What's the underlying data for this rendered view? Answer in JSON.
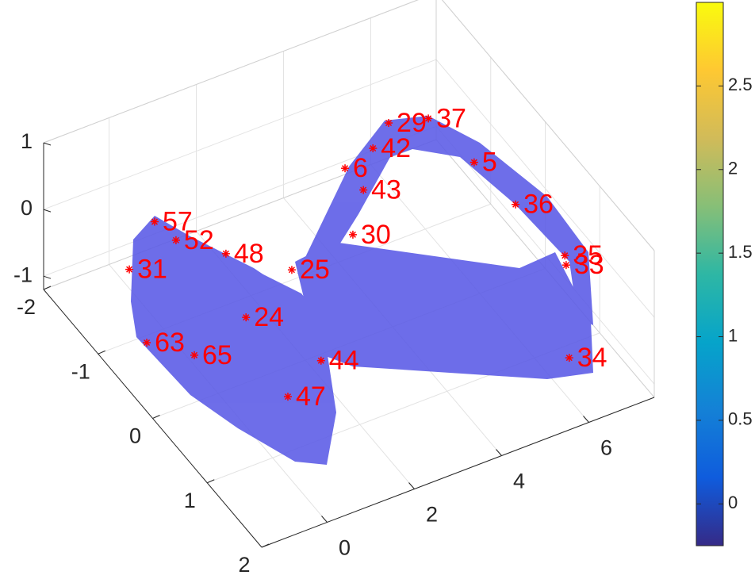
{
  "chart_data": {
    "type": "scatter3d",
    "xlim": [
      -1.5,
      7.5
    ],
    "xticks": [
      0,
      2,
      4,
      6
    ],
    "ylim": [
      -2,
      2
    ],
    "yticks": [
      -2,
      -1,
      0,
      1,
      2
    ],
    "zlim": [
      -1.2,
      1
    ],
    "zticks": [
      -1,
      0,
      1
    ],
    "grid": true,
    "marker_color": "#ff0000",
    "surface_color": "#5a5ae6",
    "points": {
      "labels": [
        "37",
        "29",
        "42",
        "5",
        "6",
        "43",
        "36",
        "35",
        "33",
        "34",
        "30",
        "25",
        "48",
        "24",
        "44",
        "47",
        "63",
        "65",
        "31",
        "52",
        "57"
      ],
      "x": [
        6.07,
        5.16,
        4.8,
        7.12,
        4.16,
        4.58,
        6.82,
        6.7,
        6.73,
        5.55,
        4.34,
        1.69,
        0.18,
        0.64,
        1.11,
        0.35,
        -1.01,
        0.08,
        -0.16,
        0.91,
        0.42
      ],
      "y": [
        -1,
        -1,
        -1,
        -1,
        -1,
        -1,
        0,
        1,
        1,
        2,
        -1,
        0,
        0,
        0,
        1,
        1,
        -0.5,
        -0.5,
        -1.5,
        -1.5,
        -1.5
      ],
      "z": [
        0.44,
        0.6,
        0.31,
        -0.48,
        0.17,
        -0.26,
        -0.07,
        0.16,
        0.01,
        -0.12,
        -0.87,
        0.23,
        0.85,
        -0.22,
        -0.02,
        -0.37,
        -0.67,
        -1.13,
        -0.75,
        -0.58,
        -0.18
      ]
    },
    "colorbar": {
      "clim": [
        -0.25,
        3.0
      ],
      "ticks": [
        0,
        0.5,
        1,
        1.5,
        2,
        2.5
      ],
      "colormap": [
        "#352a87",
        "#0f5cdd",
        "#1481d6",
        "#06a4ca",
        "#2eb7a4",
        "#87bf77",
        "#d1bb59",
        "#fec832",
        "#f9fb0e"
      ]
    }
  }
}
